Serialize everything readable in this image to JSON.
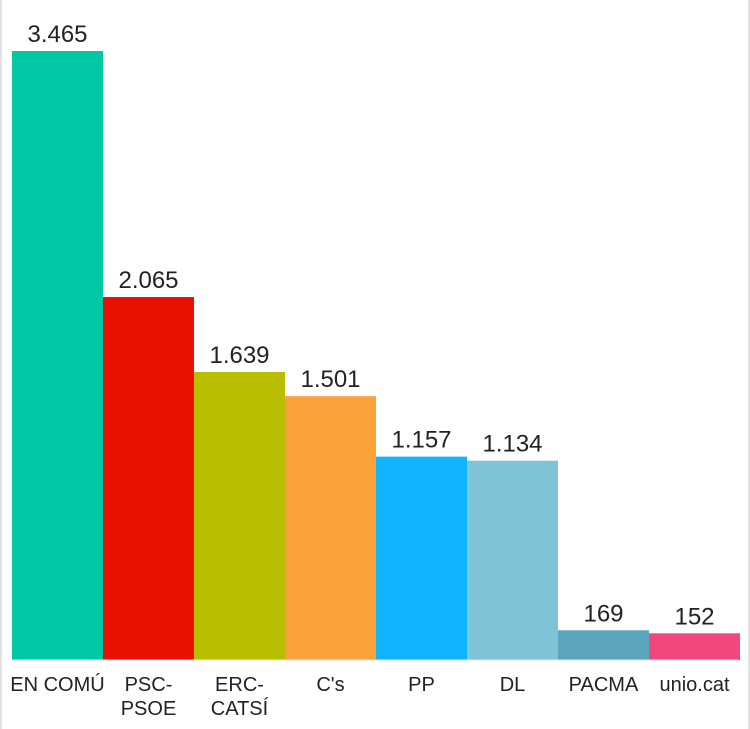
{
  "chart_data": {
    "type": "bar",
    "categories": [
      "EN COMÚ",
      "PSC-PSOE",
      "ERC-CATSÍ",
      "C's",
      "PP",
      "DL",
      "PACMA",
      "unio.cat"
    ],
    "category_lines": [
      [
        "EN COMÚ"
      ],
      [
        "PSC-",
        "PSOE"
      ],
      [
        "ERC-",
        "CATSÍ"
      ],
      [
        "C's"
      ],
      [
        "PP"
      ],
      [
        "DL"
      ],
      [
        "PACMA"
      ],
      [
        "unio.cat"
      ]
    ],
    "values": [
      3465,
      2065,
      1639,
      1501,
      1157,
      1134,
      169,
      152
    ],
    "value_labels": [
      "3.465",
      "2.065",
      "1.639",
      "1.501",
      "1.157",
      "1.134",
      "169",
      "152"
    ],
    "colors": [
      "#00c8a4",
      "#e81100",
      "#b9bf00",
      "#fba23b",
      "#11b4ff",
      "#7fc3d6",
      "#5aa6bd",
      "#f0477f"
    ],
    "title": "",
    "xlabel": "",
    "ylabel": "",
    "ylim": [
      0,
      3465
    ],
    "grid": false,
    "legend": "none"
  }
}
